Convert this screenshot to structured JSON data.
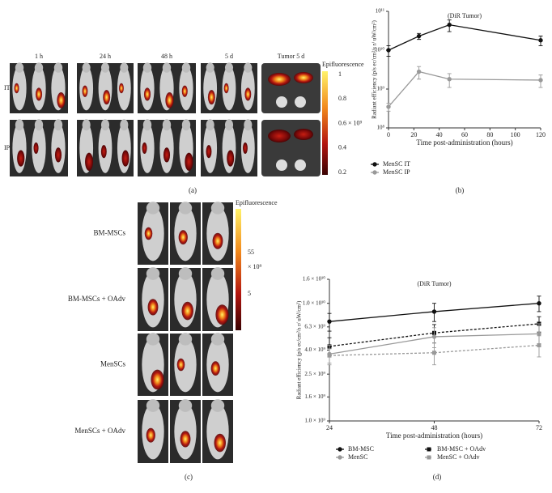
{
  "figure": {
    "panel_a": {
      "column_labels": [
        "1 h",
        "24 h",
        "48 h",
        "5 d",
        "Tumor 5 d"
      ],
      "row_labels": [
        "IT",
        "IP"
      ],
      "colorbar": {
        "title": "Epifluorescence",
        "labels": [
          "1",
          "0.8",
          "0.6 × 10⁹",
          "0.4",
          "0.2"
        ]
      }
    },
    "panel_c": {
      "row_labels": [
        "BM-MSCs",
        "BM-MSCs + OAdv",
        "MenSCs",
        "MenSCs + OAdv"
      ],
      "colorbar": {
        "title": "Epifluorescence",
        "labels": [
          "55",
          "× 10⁹",
          "5"
        ]
      }
    },
    "panel_labels": [
      "(a)",
      "(b)",
      "(c)",
      "(d)"
    ]
  },
  "chart_data": [
    {
      "type": "line",
      "title": "(DiR Tumor)",
      "x_label": "Time post-administration (hours)",
      "y_label": "Radiant efficiency (p/s ec/cm²/s r/ uW/cm²)",
      "x": [
        0,
        24,
        48,
        120
      ],
      "series": [
        {
          "name": "MenSC IT",
          "color": "#111111",
          "marker": "circle",
          "dashed": false,
          "values": [
            10000000000,
            23000000000,
            45000000000,
            18000000000
          ],
          "errors": [
            3000000000,
            4000000000,
            15000000000,
            5000000000
          ]
        },
        {
          "name": "MenSC IP",
          "color": "#999999",
          "marker": "circle",
          "dashed": false,
          "values": [
            350000000,
            2800000000,
            1800000000,
            1700000000
          ],
          "errors": [
            80000000,
            1000000000,
            700000000,
            600000000
          ]
        }
      ],
      "xlim": [
        0,
        120
      ],
      "xticks": [
        0,
        20,
        40,
        60,
        80,
        100,
        120
      ],
      "log_y": true,
      "ylim": [
        100000000,
        100000000000
      ],
      "yticks": [
        {
          "value": 100000000,
          "label": "10⁸"
        },
        {
          "value": 1000000000,
          "label": "10⁹"
        },
        {
          "value": 10000000000,
          "label": "10¹⁰"
        },
        {
          "value": 100000000000,
          "label": "10¹¹"
        }
      ],
      "legend": "below"
    },
    {
      "type": "line",
      "title": "(DiR Tumor)",
      "x_label": "Time post-administration (hours)",
      "y_label": "Radiant efficiency (p/s ec/cm²/s r/ uW/cm²)",
      "x": [
        24,
        48,
        72
      ],
      "series": [
        {
          "name": "BM-MSC",
          "color": "#111111",
          "marker": "circle",
          "dashed": false,
          "values": [
            7000000000,
            8500000000,
            10000000000
          ],
          "errors": [
            1200000000,
            1500000000,
            1500000000
          ]
        },
        {
          "name": "BM-MSC + OAdv",
          "color": "#111111",
          "marker": "square",
          "dashed": true,
          "values": [
            4300000000,
            5600000000,
            6700000000
          ],
          "errors": [
            800000000,
            1000000000,
            1000000000
          ]
        },
        {
          "name": "MenSC",
          "color": "#999999",
          "marker": "circle",
          "dashed": false,
          "values": [
            3700000000,
            5200000000,
            5500000000
          ],
          "errors": [
            700000000,
            1000000000,
            1200000000
          ]
        },
        {
          "name": "MenSC + OAdv",
          "color": "#999999",
          "marker": "square",
          "dashed": true,
          "values": [
            3600000000,
            3800000000,
            4400000000
          ],
          "errors": [
            500000000,
            800000000,
            900000000
          ]
        }
      ],
      "xlim": [
        24,
        72
      ],
      "xticks": [
        24,
        48,
        72
      ],
      "log_y": true,
      "ylim": [
        1000000000,
        16000000000
      ],
      "yticks": [
        {
          "value": 1000000000,
          "label": "1.0 × 10⁹"
        },
        {
          "value": 1600000000,
          "label": "1.6 × 10⁹"
        },
        {
          "value": 2500000000,
          "label": "2.5 × 10⁹"
        },
        {
          "value": 4000000000,
          "label": "4.0 × 10⁹"
        },
        {
          "value": 6300000000,
          "label": "6.3 × 10⁹"
        },
        {
          "value": 10000000000,
          "label": "1.0 × 10¹⁰"
        },
        {
          "value": 16000000000,
          "label": "1.6 × 10¹⁰"
        }
      ],
      "legend": "below"
    }
  ]
}
